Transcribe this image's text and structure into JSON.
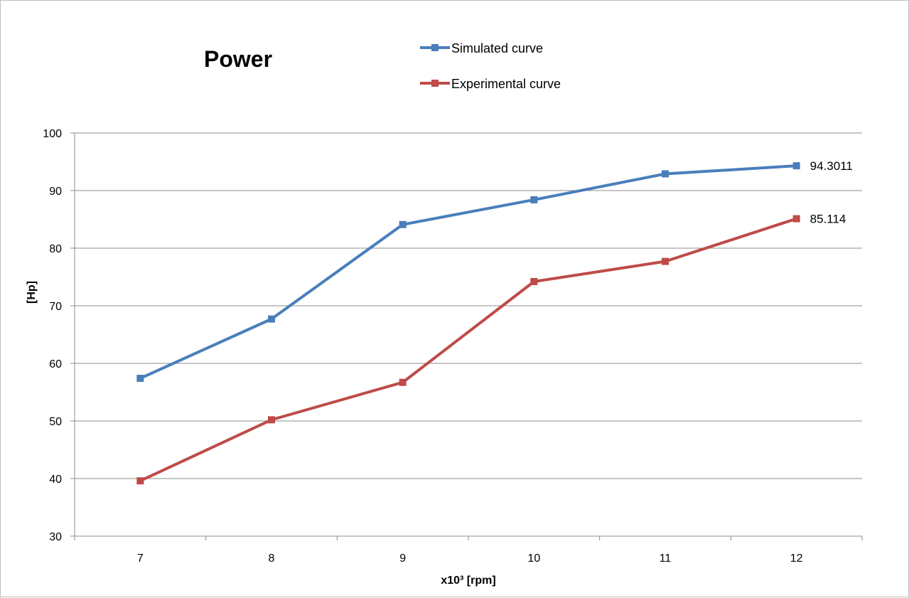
{
  "chart_data": {
    "type": "line",
    "title": "Power",
    "xlabel": "x10³ [rpm]",
    "ylabel": "[Hp]",
    "categories": [
      "7",
      "8",
      "9",
      "10",
      "11",
      "12"
    ],
    "yticks": [
      "30",
      "40",
      "50",
      "60",
      "70",
      "80",
      "90",
      "100"
    ],
    "ylim": [
      30,
      100
    ],
    "grid": true,
    "legend_position": "top",
    "series": [
      {
        "name": "Simulated curve",
        "color": "#4a7ebb",
        "values": [
          57.4,
          67.7,
          84.1,
          88.4,
          92.9,
          94.3011
        ],
        "end_label": "94.3011"
      },
      {
        "name": "Experimental curve",
        "color": "#be4b48",
        "values": [
          39.6,
          50.2,
          56.7,
          74.2,
          77.7,
          85.114
        ],
        "end_label": "85.114"
      }
    ]
  }
}
